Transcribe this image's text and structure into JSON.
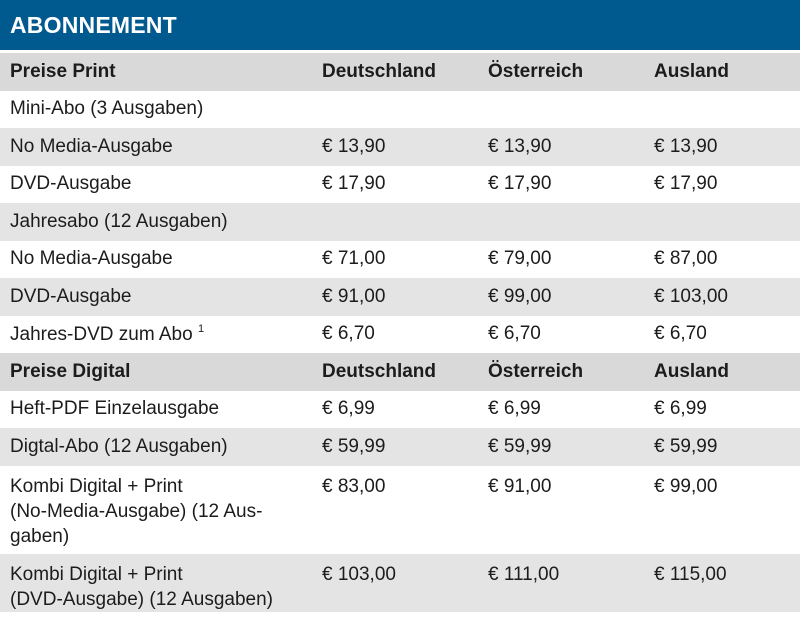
{
  "title": "ABONNEMENT",
  "print_header": {
    "label": "Preise Print",
    "col1": "Deutschland",
    "col2": "Österreich",
    "col3": "Ausland"
  },
  "print_rows": [
    {
      "label": "Mini-Abo (3 Ausgaben)",
      "d": "",
      "a": "",
      "au": ""
    },
    {
      "label": "No Media-Ausgabe",
      "d": "€ 13,90",
      "a": "€ 13,90",
      "au": "€ 13,90"
    },
    {
      "label": "DVD-Ausgabe",
      "d": "€ 17,90",
      "a": "€ 17,90",
      "au": "€ 17,90"
    },
    {
      "label": "Jahresabo (12 Ausgaben)",
      "d": "",
      "a": "",
      "au": ""
    },
    {
      "label": "No Media-Ausgabe",
      "d": "€ 71,00",
      "a": "€ 79,00",
      "au": "€ 87,00"
    },
    {
      "label": "DVD-Ausgabe",
      "d": "€ 91,00",
      "a": "€ 99,00",
      "au": "€ 103,00"
    },
    {
      "label": "Jahres-DVD zum Abo",
      "footnote": "1",
      "d": "€ 6,70",
      "a": "€ 6,70",
      "au": "€ 6,70"
    }
  ],
  "digital_header": {
    "label": "Preise Digital",
    "col1": "Deutschland",
    "col2": "Österreich",
    "col3": "Ausland"
  },
  "digital_rows": [
    {
      "label": "Heft-PDF Einzelausgabe",
      "d": "€ 6,99",
      "a": "€ 6,99",
      "au": "€ 6,99"
    },
    {
      "label": "Digtal-Abo (12 Ausgaben)",
      "d": "€ 59,99",
      "a": "€ 59,99",
      "au": "€ 59,99"
    },
    {
      "label": "Kombi Digital + Print (No-Media-Ausgabe) (12 Aus-gaben)",
      "d": "€ 83,00",
      "a": "€ 91,00",
      "au": "€ 99,00"
    },
    {
      "label": "Kombi Digital + Print (DVD-Ausgabe) (12 Ausgaben)",
      "d": "€ 103,00",
      "a": "€ 111,00",
      "au": "€ 115,00"
    }
  ],
  "digital_label_lines": {
    "kombi_nomedia": [
      "Kombi Digital + Print",
      "(No-Media-Ausgabe) (12 Aus-",
      "gaben)"
    ],
    "kombi_dvd": [
      "Kombi Digital + Print",
      "(DVD-Ausgabe) (12 Ausgaben)"
    ]
  }
}
